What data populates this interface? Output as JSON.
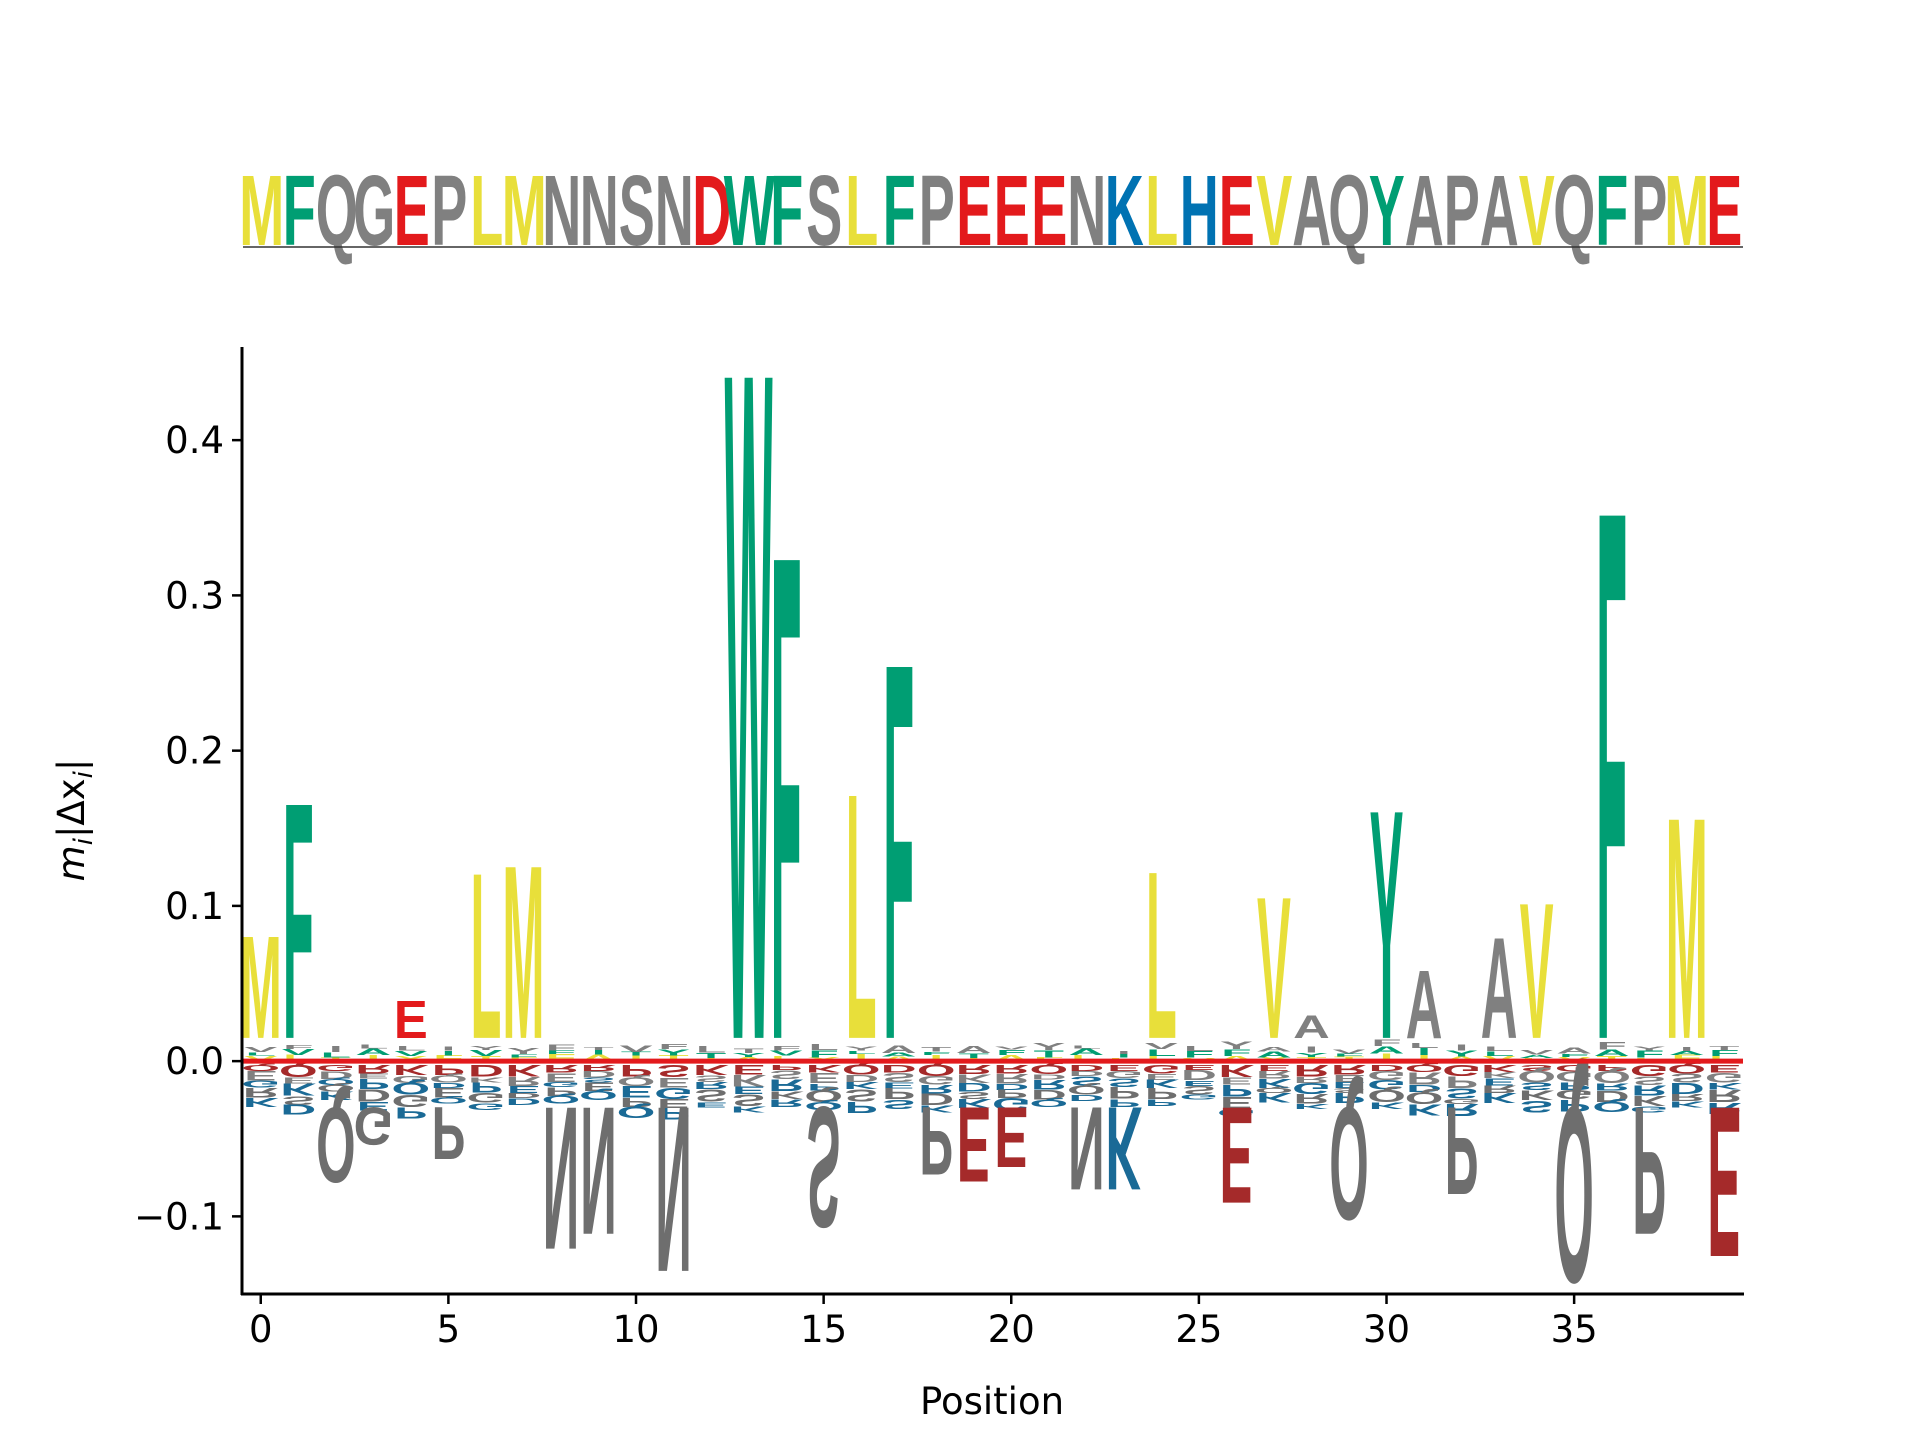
{
  "chart_data": {
    "type": "sequence-logo",
    "sequence": "MFQGEPLMNNSNDWFSLFPEEENKLHEVAQYAPAVQFPME",
    "xlabel": "Position",
    "ylabel_main": "m",
    "ylabel_sub": "i",
    "ylabel_mid": "|Δx",
    "ylabel_sub2": "i",
    "ylabel_end": "|",
    "xlim": [
      -0.5,
      39.5
    ],
    "ylim": [
      -0.15,
      0.46
    ],
    "xticks": [
      0,
      5,
      10,
      15,
      20,
      25,
      30,
      35
    ],
    "yticks": [
      -0.1,
      0.0,
      0.1,
      0.2,
      0.3,
      0.4
    ],
    "ytick_labels": [
      "−0.1",
      "0.0",
      "0.1",
      "0.2",
      "0.3",
      "0.4"
    ],
    "colors": {
      "hydrophobic_yellow": "#e8df3a",
      "aromatic_green": "#009e73",
      "acidic_red": "#e31a1c",
      "basic_blue": "#0072b2",
      "neutral_gray": "#808080",
      "neg_red": "#a52a2a",
      "neg_blue": "#1a6a96",
      "neg_gray": "#6e6e6e",
      "baseline": "#e31a1c"
    },
    "sequence_colors": {
      "M": "#e8df3a",
      "L": "#e8df3a",
      "V": "#e8df3a",
      "I": "#e8df3a",
      "F": "#009e73",
      "W": "#009e73",
      "Y": "#009e73",
      "E": "#e31a1c",
      "D": "#e31a1c",
      "K": "#0072b2",
      "H": "#0072b2",
      "R": "#0072b2",
      "Q": "#808080",
      "G": "#808080",
      "P": "#808080",
      "N": "#808080",
      "S": "#808080",
      "A": "#808080",
      "T": "#808080",
      "C": "#808080"
    },
    "positive_peaks": [
      {
        "x": 0,
        "letter": "M",
        "value": 0.083,
        "color": "#e8df3a"
      },
      {
        "x": 1,
        "letter": "F",
        "value": 0.172,
        "color": "#009e73"
      },
      {
        "x": 4,
        "letter": "E",
        "value": 0.04,
        "color": "#e31a1c"
      },
      {
        "x": 6,
        "letter": "L",
        "value": 0.125,
        "color": "#e8df3a"
      },
      {
        "x": 7,
        "letter": "M",
        "value": 0.13,
        "color": "#e8df3a"
      },
      {
        "x": 13,
        "letter": "W",
        "value": 0.46,
        "color": "#009e73"
      },
      {
        "x": 14,
        "letter": "F",
        "value": 0.337,
        "color": "#009e73"
      },
      {
        "x": 16,
        "letter": "L",
        "value": 0.178,
        "color": "#e8df3a"
      },
      {
        "x": 17,
        "letter": "F",
        "value": 0.265,
        "color": "#009e73"
      },
      {
        "x": 24,
        "letter": "L",
        "value": 0.126,
        "color": "#e8df3a"
      },
      {
        "x": 27,
        "letter": "V",
        "value": 0.109,
        "color": "#e8df3a"
      },
      {
        "x": 28,
        "letter": "A",
        "value": 0.03,
        "color": "#808080"
      },
      {
        "x": 30,
        "letter": "Y",
        "value": 0.167,
        "color": "#009e73"
      },
      {
        "x": 31,
        "letter": "A",
        "value": 0.06,
        "color": "#808080"
      },
      {
        "x": 33,
        "letter": "A",
        "value": 0.082,
        "color": "#808080"
      },
      {
        "x": 34,
        "letter": "V",
        "value": 0.105,
        "color": "#e8df3a"
      },
      {
        "x": 36,
        "letter": "F",
        "value": 0.367,
        "color": "#009e73"
      },
      {
        "x": 38,
        "letter": "M",
        "value": 0.162,
        "color": "#e8df3a"
      }
    ],
    "negative_peaks": [
      {
        "x": 2,
        "letter": "Q",
        "value": -0.08,
        "color": "#6e6e6e"
      },
      {
        "x": 3,
        "letter": "G",
        "value": -0.055,
        "color": "#6e6e6e"
      },
      {
        "x": 5,
        "letter": "P",
        "value": -0.065,
        "color": "#6e6e6e"
      },
      {
        "x": 8,
        "letter": "N",
        "value": -0.125,
        "color": "#6e6e6e"
      },
      {
        "x": 9,
        "letter": "N",
        "value": -0.115,
        "color": "#6e6e6e"
      },
      {
        "x": 11,
        "letter": "N",
        "value": -0.14,
        "color": "#6e6e6e"
      },
      {
        "x": 15,
        "letter": "S",
        "value": -0.11,
        "color": "#6e6e6e"
      },
      {
        "x": 18,
        "letter": "P",
        "value": -0.075,
        "color": "#6e6e6e"
      },
      {
        "x": 19,
        "letter": "E",
        "value": -0.08,
        "color": "#a52a2a"
      },
      {
        "x": 20,
        "letter": "E",
        "value": -0.07,
        "color": "#a52a2a"
      },
      {
        "x": 22,
        "letter": "N",
        "value": -0.085,
        "color": "#6e6e6e"
      },
      {
        "x": 23,
        "letter": "K",
        "value": -0.085,
        "color": "#1a6a96"
      },
      {
        "x": 26,
        "letter": "E",
        "value": -0.094,
        "color": "#a52a2a"
      },
      {
        "x": 29,
        "letter": "Q",
        "value": -0.105,
        "color": "#6e6e6e"
      },
      {
        "x": 32,
        "letter": "P",
        "value": -0.088,
        "color": "#6e6e6e"
      },
      {
        "x": 35,
        "letter": "Q",
        "value": -0.147,
        "color": "#6e6e6e"
      },
      {
        "x": 37,
        "letter": "P",
        "value": -0.115,
        "color": "#6e6e6e"
      },
      {
        "x": 39,
        "letter": "E",
        "value": -0.13,
        "color": "#a52a2a"
      }
    ]
  }
}
